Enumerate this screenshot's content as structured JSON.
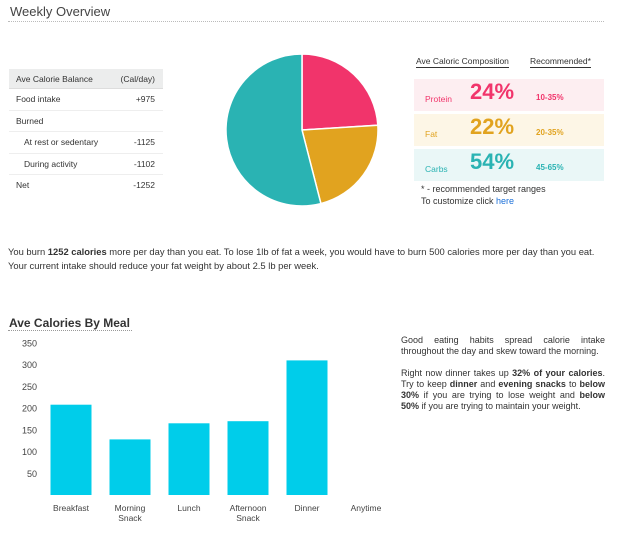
{
  "header": {
    "title": "Weekly Overview"
  },
  "balance": {
    "header_label": "Ave Calorie Balance",
    "header_unit": "(Cal/day)",
    "rows": [
      {
        "label": "Food intake",
        "value": "+975",
        "indent": false
      },
      {
        "label": "Burned",
        "value": "",
        "indent": false
      },
      {
        "label": "At rest or sedentary",
        "value": "-1125",
        "indent": true
      },
      {
        "label": "During activity",
        "value": "-1102",
        "indent": true
      },
      {
        "label": "Net",
        "value": "-1252",
        "indent": false
      }
    ]
  },
  "composition": {
    "heading": "Ave Caloric Composition",
    "recommended_heading": "Recommended*",
    "items": [
      {
        "name": "Protein",
        "percent": "24%",
        "range": "10-35%",
        "color": "#f1346b",
        "bg": "#fdeef1"
      },
      {
        "name": "Fat",
        "percent": "22%",
        "range": "20-35%",
        "color": "#e1a31f",
        "bg": "#fdf6e6"
      },
      {
        "name": "Carbs",
        "percent": "54%",
        "range": "45-65%",
        "color": "#2ab3b3",
        "bg": "#eaf7f7"
      }
    ],
    "note": "* - recommended target ranges",
    "customize_text": "To customize click",
    "customize_link": "here"
  },
  "summary": {
    "p1": "You burn ",
    "p1_bold": "1252 calories",
    "p2": " more per day than you eat. To lose 1lb of fat a week, you would have to burn 500 calories more per day than you eat. Your current intake should reduce your fat weight by about 2.5 lb per week."
  },
  "meals": {
    "title": "Ave Calories By Meal"
  },
  "advice": {
    "para1": "Good eating habits spread calorie intake throughout the day and skew toward the morning.",
    "a1": "Right now dinner takes up ",
    "a1_bold": "32% of your calories",
    "a2": ". Try to keep ",
    "a2_bold": "dinner",
    "a3": " and ",
    "a3_bold": "evening snacks",
    "a4": " to ",
    "a4_bold": "below 30%",
    "a5": " if you are trying to lose weight and ",
    "a5_bold": "below 50%",
    "a6": " if you are trying to maintain your weight."
  },
  "chart_data": [
    {
      "type": "pie",
      "slices": [
        {
          "label": "Protein",
          "value": 24,
          "color": "#f1346b"
        },
        {
          "label": "Fat",
          "value": 22,
          "color": "#e1a31f"
        },
        {
          "label": "Carbs",
          "value": 54,
          "color": "#2ab3b3"
        }
      ]
    },
    {
      "type": "bar",
      "title": "Ave Calories By Meal",
      "categories": [
        "Breakfast",
        "Morning Snack",
        "Lunch",
        "Afternoon Snack",
        "Dinner",
        "Anytime"
      ],
      "category_lines": [
        [
          "Breakfast"
        ],
        [
          "Morning",
          "Snack"
        ],
        [
          "Lunch"
        ],
        [
          "Afternoon",
          "Snack"
        ],
        [
          "Dinner"
        ],
        [
          "Anytime"
        ]
      ],
      "values": [
        208,
        128,
        165,
        170,
        310,
        0
      ],
      "yticks": [
        50,
        100,
        150,
        200,
        250,
        300,
        350
      ],
      "ylim": [
        0,
        350
      ],
      "bar_color": "#00cdea",
      "grid": false
    }
  ]
}
